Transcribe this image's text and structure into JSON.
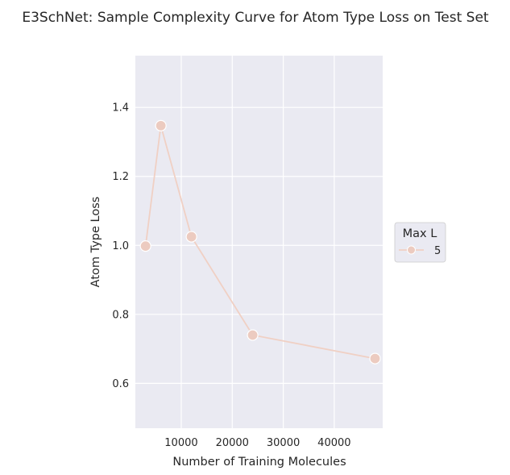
{
  "chart_data": {
    "type": "line",
    "title": "E3SchNet: Sample Complexity Curve for Atom Type Loss on Test Set",
    "xlabel": "Number of Training Molecules",
    "ylabel": "Atom Type Loss",
    "xlim": [
      1000,
      49500
    ],
    "ylim": [
      0.47,
      1.55
    ],
    "xticks": [
      10000,
      20000,
      30000,
      40000
    ],
    "xtick_labels": [
      "10000",
      "20000",
      "30000",
      "40000"
    ],
    "yticks": [
      0.6,
      0.8,
      1.0,
      1.2,
      1.4
    ],
    "ytick_labels": [
      "0.6",
      "0.8",
      "1.0",
      "1.2",
      "1.4"
    ],
    "grid": true,
    "legend": {
      "title": "Max L",
      "placement": "center-right outside"
    },
    "series": [
      {
        "name": "5",
        "color": "#f0d0c4",
        "marker_color": "#eccbc0",
        "x": [
          3000,
          6000,
          12000,
          24000,
          48000
        ],
        "y": [
          0.998,
          1.347,
          1.025,
          0.74,
          0.672
        ]
      }
    ]
  },
  "colors": {
    "plot_bg": "#eaeaf2",
    "grid": "#ffffff",
    "text": "#262626"
  }
}
